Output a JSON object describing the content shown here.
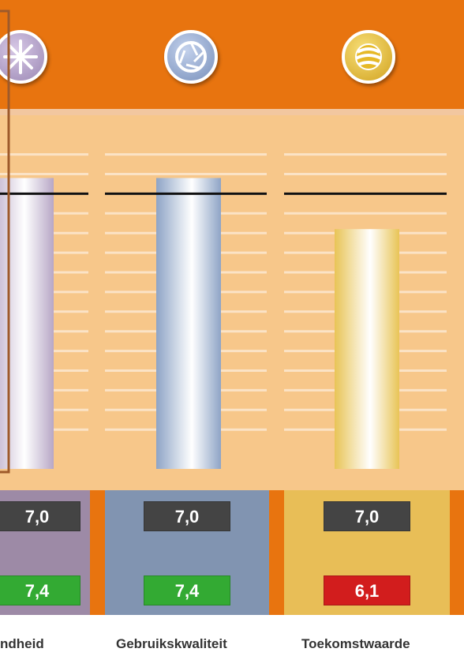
{
  "chart_data": {
    "type": "bar",
    "categories": [
      "ndheid",
      "Gebruikskwaliteit",
      "Toekomstwaarde"
    ],
    "series": [
      {
        "values": [
          7.4,
          7.4,
          6.1
        ]
      },
      {
        "values": [
          7.0,
          7.0,
          7.0
        ]
      }
    ],
    "ylim": [
      0,
      10
    ],
    "grid": true,
    "colors": {
      "bars": [
        "#b7a7c6",
        "#8ea4c6",
        "#e8c456"
      ],
      "panels": [
        "#9d8aa6",
        "#8194b1",
        "#e8be57"
      ],
      "score_boxes": [
        "#33aa33",
        "#33aa33",
        "#d21d1d"
      ],
      "orange": "#e8740f",
      "plot_bg": "#f7c78a"
    }
  },
  "values_text": {
    "ref": [
      "7,0",
      "7,0",
      "7,0"
    ],
    "score": [
      "7,4",
      "7,4",
      "6,1"
    ]
  },
  "icons": [
    "snowflake-icon",
    "aperture-icon",
    "globe-icon"
  ]
}
